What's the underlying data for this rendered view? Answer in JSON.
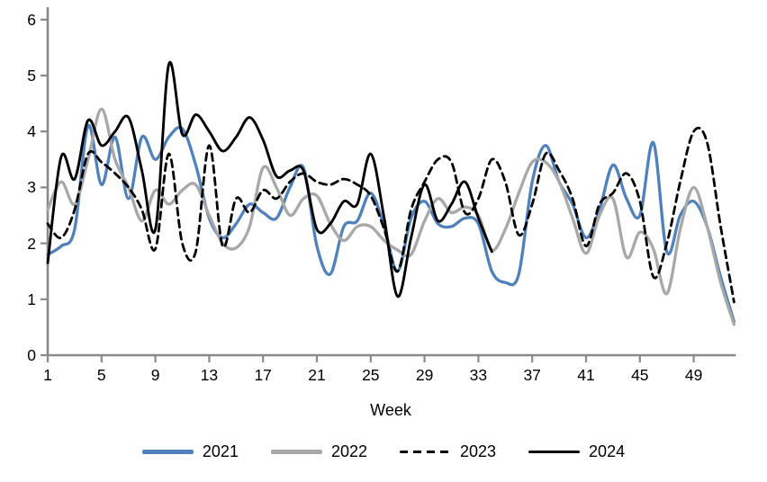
{
  "chart_data": {
    "type": "line",
    "title": "",
    "xlabel": "Week",
    "ylabel": "",
    "xlim": [
      1,
      52
    ],
    "ylim": [
      0,
      6
    ],
    "grid": false,
    "legend_position": "bottom",
    "x_tick_labels": [
      "1",
      "5",
      "9",
      "13",
      "17",
      "21",
      "25",
      "29",
      "33",
      "37",
      "41",
      "45",
      "49"
    ],
    "x_ticks": [
      1,
      5,
      9,
      13,
      17,
      21,
      25,
      29,
      33,
      37,
      41,
      45,
      49
    ],
    "y_tick_labels": [
      "0",
      "1",
      "2",
      "3",
      "4",
      "5",
      "6"
    ],
    "y_ticks": [
      0,
      1,
      2,
      3,
      4,
      5,
      6
    ],
    "weeks": [
      1,
      2,
      3,
      4,
      5,
      6,
      7,
      8,
      9,
      10,
      11,
      12,
      13,
      14,
      15,
      16,
      17,
      18,
      19,
      20,
      21,
      22,
      23,
      24,
      25,
      26,
      27,
      28,
      29,
      30,
      31,
      32,
      33,
      34,
      35,
      36,
      37,
      38,
      39,
      40,
      41,
      42,
      43,
      44,
      45,
      46,
      47,
      48,
      49,
      50,
      51,
      52
    ],
    "series": [
      {
        "name": "2021",
        "color": "#4f81bd",
        "style": "solid",
        "start_week": 1,
        "values": [
          1.8,
          1.95,
          2.25,
          4.1,
          3.05,
          3.9,
          2.8,
          3.9,
          3.5,
          3.9,
          4.05,
          3.4,
          2.45,
          2.1,
          2.35,
          2.7,
          2.55,
          2.45,
          3.0,
          3.35,
          1.95,
          1.45,
          2.3,
          2.4,
          2.9,
          2.3,
          1.5,
          2.45,
          2.75,
          2.35,
          2.3,
          2.45,
          2.35,
          1.5,
          1.3,
          1.45,
          3.1,
          3.75,
          3.1,
          2.7,
          2.1,
          2.6,
          3.4,
          2.8,
          2.5,
          3.8,
          1.85,
          2.5,
          2.75,
          2.3,
          1.4,
          0.6
        ]
      },
      {
        "name": "2022",
        "color": "#a8a8a8",
        "style": "solid",
        "start_week": 1,
        "values": [
          2.6,
          3.1,
          2.7,
          3.5,
          4.4,
          3.5,
          3.0,
          2.4,
          2.95,
          2.7,
          2.95,
          3.05,
          2.5,
          2.0,
          1.92,
          2.3,
          3.35,
          3.0,
          2.5,
          2.8,
          2.85,
          2.35,
          2.05,
          2.3,
          2.3,
          2.05,
          1.88,
          1.8,
          2.4,
          2.8,
          2.55,
          2.65,
          2.5,
          1.88,
          2.25,
          2.9,
          3.45,
          3.45,
          3.1,
          2.45,
          1.82,
          2.5,
          2.8,
          1.75,
          2.2,
          1.9,
          1.1,
          2.25,
          3.0,
          2.3,
          1.3,
          0.55
        ]
      },
      {
        "name": "2023",
        "color": "#000000",
        "style": "dashed",
        "start_week": 1,
        "values": [
          2.35,
          2.1,
          2.6,
          3.6,
          3.45,
          3.25,
          3.0,
          2.6,
          1.9,
          3.6,
          2.0,
          1.85,
          3.75,
          1.95,
          2.8,
          2.55,
          2.95,
          2.8,
          3.1,
          3.25,
          3.1,
          3.05,
          3.15,
          3.05,
          2.85,
          2.25,
          1.5,
          2.6,
          3.1,
          3.5,
          3.45,
          2.55,
          2.8,
          3.5,
          3.1,
          2.15,
          2.7,
          3.6,
          3.3,
          2.8,
          1.95,
          2.7,
          2.9,
          3.25,
          2.75,
          1.4,
          2.0,
          3.1,
          4.0,
          3.8,
          2.3,
          0.95
        ]
      },
      {
        "name": "2024",
        "color": "#000000",
        "style": "solid",
        "start_week": 1,
        "values": [
          1.65,
          3.55,
          3.15,
          4.2,
          3.75,
          4.0,
          4.25,
          3.3,
          2.25,
          5.2,
          3.95,
          4.3,
          4.0,
          3.65,
          3.9,
          4.25,
          3.85,
          3.2,
          3.3,
          3.3,
          2.25,
          2.35,
          2.75,
          2.7,
          3.6,
          2.45,
          1.05,
          2.1,
          3.05,
          2.4,
          2.7,
          3.1,
          2.45,
          1.85
        ]
      }
    ],
    "axis_color": "#8a8a8a"
  }
}
